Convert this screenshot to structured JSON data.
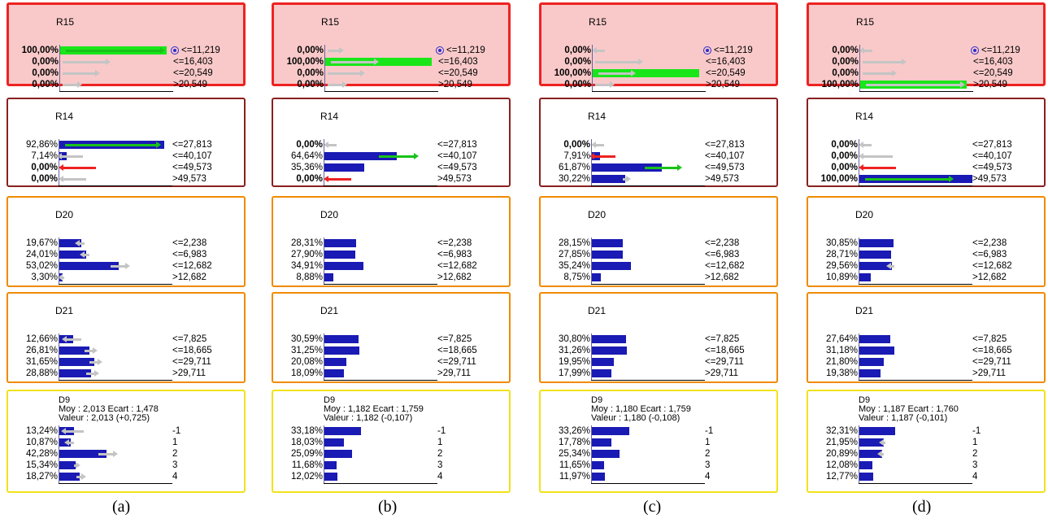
{
  "columns": [
    {
      "caption": "(a)",
      "nodes": [
        {
          "type": "evidence",
          "title": "R15",
          "rows": [
            {
              "pct": "100,00%",
              "label": "<=11,219",
              "value": 100,
              "bold": true,
              "bar": "green",
              "arrow": "right",
              "arrow_color": "green",
              "target": true
            },
            {
              "pct": "0,00%",
              "label": "<=16,403",
              "value": 0,
              "bold": true,
              "arrow": "right",
              "arrow_color": "gray",
              "arrow_len": 55
            },
            {
              "pct": "0,00%",
              "label": "<=20,549",
              "value": 0,
              "bold": true,
              "arrow": "right",
              "arrow_color": "gray",
              "arrow_len": 42
            },
            {
              "pct": "0,00%",
              "label": ">20,549",
              "value": 0,
              "bold": true,
              "arrow": "right",
              "arrow_color": "gray",
              "arrow_len": 20
            }
          ]
        },
        {
          "type": "dark",
          "title": "R14",
          "rows": [
            {
              "pct": "92,86%",
              "label": "<=27,813",
              "value": 92.86,
              "bar": "blue",
              "arrow": "right",
              "arrow_color": "green"
            },
            {
              "pct": "7,14%",
              "label": "<=40,107",
              "value": 7.14,
              "bar": "blue",
              "arrow": "left",
              "arrow_color": "gray",
              "arrow_len": 28
            },
            {
              "pct": "0,00%",
              "label": "<=49,573",
              "value": 0,
              "bold": true,
              "arrow": "left",
              "arrow_color": "red",
              "arrow_len": 42
            },
            {
              "pct": "0,00%",
              "label": ">49,573",
              "value": 0,
              "bold": true,
              "arrow": "left",
              "arrow_color": "gray",
              "arrow_len": 30
            }
          ]
        },
        {
          "type": "orange",
          "title": "D20",
          "rows": [
            {
              "pct": "19,67%",
              "label": "<=2,238",
              "value": 19.67,
              "bar": "blue",
              "arrow": "left",
              "arrow_color": "gray",
              "arrow_len": 8
            },
            {
              "pct": "24,01%",
              "label": "<=6,983",
              "value": 24.01,
              "bar": "blue",
              "arrow": "left",
              "arrow_color": "gray",
              "arrow_len": 8
            },
            {
              "pct": "53,02%",
              "label": "<=12,682",
              "value": 53.02,
              "bar": "blue",
              "arrow": "right",
              "arrow_color": "gray",
              "arrow_len": 20
            },
            {
              "pct": "3,30%",
              "label": ">12,682",
              "value": 3.3,
              "bar": "blue",
              "arrow": "left",
              "arrow_color": "gray",
              "arrow_len": 4
            }
          ]
        },
        {
          "type": "orange",
          "title": "D21",
          "rows": [
            {
              "pct": "12,66%",
              "label": "<=7,825",
              "value": 12.66,
              "bar": "blue",
              "arrow": "left",
              "arrow_color": "gray",
              "arrow_len": 20
            },
            {
              "pct": "26,81%",
              "label": "<=18,665",
              "value": 26.81,
              "bar": "blue",
              "arrow": "right",
              "arrow_color": "gray",
              "arrow_len": 12
            },
            {
              "pct": "31,65%",
              "label": "<=29,711",
              "value": 31.65,
              "bar": "blue",
              "arrow": "right",
              "arrow_color": "gray",
              "arrow_len": 12
            },
            {
              "pct": "28,88%",
              "label": ">29,711",
              "value": 28.88,
              "bar": "blue",
              "arrow": "right",
              "arrow_color": "gray",
              "arrow_len": 12
            }
          ]
        },
        {
          "type": "yellow",
          "title": "D9\nMoy : 2,013 Ecart : 1,478\nValeur : 2,013 (+0,725)",
          "rows": [
            {
              "pct": "13,24%",
              "label": "-1",
              "value": 13.24,
              "bar": "blue",
              "arrow": "left",
              "arrow_color": "gray",
              "arrow_len": 24
            },
            {
              "pct": "10,87%",
              "label": "1",
              "value": 10.87,
              "bar": "blue",
              "arrow": "left",
              "arrow_color": "gray",
              "arrow_len": 8
            },
            {
              "pct": "42,28%",
              "label": "2",
              "value": 42.28,
              "bar": "blue",
              "arrow": "right",
              "arrow_color": "gray",
              "arrow_len": 20
            },
            {
              "pct": "15,34%",
              "label": "3",
              "value": 15.34,
              "bar": "blue",
              "arrow": "right",
              "arrow_color": "gray",
              "arrow_len": 4
            },
            {
              "pct": "18,27%",
              "label": "4",
              "value": 18.27,
              "bar": "blue",
              "arrow": "right",
              "arrow_color": "gray",
              "arrow_len": 8
            }
          ]
        }
      ]
    },
    {
      "caption": "(b)",
      "nodes": [
        {
          "type": "evidence",
          "title": "R15",
          "rows": [
            {
              "pct": "0,00%",
              "label": "<=11,219",
              "value": 0,
              "bold": true,
              "arrow": "right",
              "arrow_color": "gray",
              "arrow_len": 16,
              "target": true
            },
            {
              "pct": "100,00%",
              "label": "<=16,403",
              "value": 100,
              "bold": true,
              "bar": "green",
              "arrow": "right",
              "arrow_color": "gray",
              "arrow_len": 55
            },
            {
              "pct": "0,00%",
              "label": "<=20,549",
              "value": 0,
              "bold": true,
              "arrow": "right",
              "arrow_color": "gray",
              "arrow_len": 42
            },
            {
              "pct": "0,00%",
              "label": ">20,549",
              "value": 0,
              "bold": true,
              "arrow": "right",
              "arrow_color": "gray",
              "arrow_len": 20
            }
          ]
        },
        {
          "type": "dark",
          "title": "R14",
          "rows": [
            {
              "pct": "0,00%",
              "label": "<=27,813",
              "value": 0,
              "bold": true,
              "arrow": "left",
              "arrow_color": "gray",
              "arrow_len": 12
            },
            {
              "pct": "64,64%",
              "label": "<=40,107",
              "value": 64.64,
              "bar": "blue",
              "arrow": "right",
              "arrow_color": "green",
              "arrow_len": 45
            },
            {
              "pct": "35,36%",
              "label": "<=49,573",
              "value": 35.36,
              "bar": "blue"
            },
            {
              "pct": "0,00%",
              "label": ">49,573",
              "value": 0,
              "bold": true,
              "arrow": "left",
              "arrow_color": "red",
              "arrow_len": 30
            }
          ]
        },
        {
          "type": "orange",
          "title": "D20",
          "rows": [
            {
              "pct": "28,31%",
              "label": "<=2,238",
              "value": 28.31,
              "bar": "blue"
            },
            {
              "pct": "27,90%",
              "label": "<=6,983",
              "value": 27.9,
              "bar": "blue"
            },
            {
              "pct": "34,91%",
              "label": "<=12,682",
              "value": 34.91,
              "bar": "blue"
            },
            {
              "pct": "8,88%",
              "label": ">12,682",
              "value": 8.88,
              "bar": "blue"
            }
          ]
        },
        {
          "type": "orange",
          "title": "D21",
          "rows": [
            {
              "pct": "30,59%",
              "label": "<=7,825",
              "value": 30.59,
              "bar": "blue"
            },
            {
              "pct": "31,25%",
              "label": "<=18,665",
              "value": 31.25,
              "bar": "blue"
            },
            {
              "pct": "20,08%",
              "label": "<=29,711",
              "value": 20.08,
              "bar": "blue"
            },
            {
              "pct": "18,09%",
              "label": ">29,711",
              "value": 18.09,
              "bar": "blue"
            }
          ]
        },
        {
          "type": "yellow",
          "title": "D9\nMoy : 1,182 Ecart : 1,759\nValeur : 1,182 (-0,107)",
          "rows": [
            {
              "pct": "33,18%",
              "label": "-1",
              "value": 33.18,
              "bar": "blue"
            },
            {
              "pct": "18,03%",
              "label": "1",
              "value": 18.03,
              "bar": "blue"
            },
            {
              "pct": "25,09%",
              "label": "2",
              "value": 25.09,
              "bar": "blue"
            },
            {
              "pct": "11,68%",
              "label": "3",
              "value": 11.68,
              "bar": "blue"
            },
            {
              "pct": "12,02%",
              "label": "4",
              "value": 12.02,
              "bar": "blue"
            }
          ]
        }
      ]
    },
    {
      "caption": "(c)",
      "nodes": [
        {
          "type": "evidence",
          "title": "R15",
          "rows": [
            {
              "pct": "0,00%",
              "label": "<=11,219",
              "value": 0,
              "bold": true,
              "arrow": "left",
              "arrow_color": "gray",
              "arrow_len": 12,
              "target": true
            },
            {
              "pct": "0,00%",
              "label": "<=16,403",
              "value": 0,
              "bold": true,
              "arrow": "right",
              "arrow_color": "gray",
              "arrow_len": 55
            },
            {
              "pct": "100,00%",
              "label": "<=20,549",
              "value": 100,
              "bold": true,
              "bar": "green",
              "arrow": "right",
              "arrow_color": "gray",
              "arrow_len": 42
            },
            {
              "pct": "0,00%",
              "label": ">20,549",
              "value": 0,
              "bold": true,
              "arrow": "right",
              "arrow_color": "gray",
              "arrow_len": 20
            }
          ]
        },
        {
          "type": "dark",
          "title": "R14",
          "rows": [
            {
              "pct": "0,00%",
              "label": "<=27,813",
              "value": 0,
              "bold": true,
              "arrow": "left",
              "arrow_color": "gray",
              "arrow_len": 12
            },
            {
              "pct": "7,91%",
              "label": "<=40,107",
              "value": 7.91,
              "bar": "blue",
              "arrow": "left",
              "arrow_color": "red",
              "arrow_len": 28
            },
            {
              "pct": "61,87%",
              "label": "<=49,573",
              "value": 61.87,
              "bar": "blue",
              "arrow": "right",
              "arrow_color": "green",
              "arrow_len": 42
            },
            {
              "pct": "30,22%",
              "label": ">49,573",
              "value": 30.22,
              "bar": "blue",
              "arrow": "right",
              "arrow_color": "gray",
              "arrow_len": 6
            }
          ]
        },
        {
          "type": "orange",
          "title": "D20",
          "rows": [
            {
              "pct": "28,15%",
              "label": "<=2,238",
              "value": 28.15,
              "bar": "blue"
            },
            {
              "pct": "27,85%",
              "label": "<=6,983",
              "value": 27.85,
              "bar": "blue"
            },
            {
              "pct": "35,24%",
              "label": "<=12,682",
              "value": 35.24,
              "bar": "blue"
            },
            {
              "pct": "8,75%",
              "label": ">12,682",
              "value": 8.75,
              "bar": "blue"
            }
          ]
        },
        {
          "type": "orange",
          "title": "D21",
          "rows": [
            {
              "pct": "30,80%",
              "label": "<=7,825",
              "value": 30.8,
              "bar": "blue"
            },
            {
              "pct": "31,26%",
              "label": "<=18,665",
              "value": 31.26,
              "bar": "blue"
            },
            {
              "pct": "19,95%",
              "label": "<=29,711",
              "value": 19.95,
              "bar": "blue"
            },
            {
              "pct": "17,99%",
              "label": ">29,711",
              "value": 17.99,
              "bar": "blue"
            }
          ]
        },
        {
          "type": "yellow",
          "title": "D9\nMoy : 1,180 Ecart : 1,759\nValeur : 1,180 (-0,108)",
          "rows": [
            {
              "pct": "33,26%",
              "label": "-1",
              "value": 33.26,
              "bar": "blue"
            },
            {
              "pct": "17,78%",
              "label": "1",
              "value": 17.78,
              "bar": "blue"
            },
            {
              "pct": "25,34%",
              "label": "2",
              "value": 25.34,
              "bar": "blue"
            },
            {
              "pct": "11,65%",
              "label": "3",
              "value": 11.65,
              "bar": "blue"
            },
            {
              "pct": "11,97%",
              "label": "4",
              "value": 11.97,
              "bar": "blue"
            }
          ]
        }
      ]
    },
    {
      "caption": "(d)",
      "nodes": [
        {
          "type": "evidence",
          "title": "R15",
          "rows": [
            {
              "pct": "0,00%",
              "label": "<=11,219",
              "value": 0,
              "bold": true,
              "arrow": "left",
              "arrow_color": "gray",
              "arrow_len": 12,
              "target": true
            },
            {
              "pct": "0,00%",
              "label": "<=16,403",
              "value": 0,
              "bold": true,
              "arrow": "right",
              "arrow_color": "gray",
              "arrow_len": 50
            },
            {
              "pct": "0,00%",
              "label": "<=20,549",
              "value": 0,
              "bold": true,
              "arrow": "right",
              "arrow_color": "gray",
              "arrow_len": 38
            },
            {
              "pct": "100,00%",
              "label": ">20,549",
              "value": 100,
              "bold": true,
              "bar": "green",
              "arrow": "right",
              "arrow_color": "gray"
            }
          ]
        },
        {
          "type": "dark",
          "title": "R14",
          "rows": [
            {
              "pct": "0,00%",
              "label": "<=27,813",
              "value": 0,
              "bold": true,
              "arrow": "left",
              "arrow_color": "gray",
              "arrow_len": 12
            },
            {
              "pct": "0,00%",
              "label": "<=40,107",
              "value": 0,
              "bold": true,
              "arrow": "left",
              "arrow_color": "gray",
              "arrow_len": 38
            },
            {
              "pct": "0,00%",
              "label": "<=49,573",
              "value": 0,
              "bold": true,
              "arrow": "left",
              "arrow_color": "red",
              "arrow_len": 42
            },
            {
              "pct": "100,00%",
              "label": ">49,573",
              "value": 100,
              "bold": true,
              "bar": "blue",
              "arrow": "right",
              "arrow_color": "green",
              "arrow_len": 105
            }
          ]
        },
        {
          "type": "orange",
          "title": "D20",
          "rows": [
            {
              "pct": "30,85%",
              "label": "<=2,238",
              "value": 30.85,
              "bar": "blue"
            },
            {
              "pct": "28,71%",
              "label": "<=6,983",
              "value": 28.71,
              "bar": "blue"
            },
            {
              "pct": "29,56%",
              "label": "<=12,682",
              "value": 29.56,
              "bar": "blue",
              "arrow": "left",
              "arrow_color": "gray",
              "arrow_len": 6
            },
            {
              "pct": "10,89%",
              "label": ">12,682",
              "value": 10.89,
              "bar": "blue"
            }
          ]
        },
        {
          "type": "orange",
          "title": "D21",
          "rows": [
            {
              "pct": "27,64%",
              "label": "<=7,825",
              "value": 27.64,
              "bar": "blue"
            },
            {
              "pct": "31,18%",
              "label": "<=18,665",
              "value": 31.18,
              "bar": "blue"
            },
            {
              "pct": "21,80%",
              "label": "<=29,711",
              "value": 21.8,
              "bar": "blue"
            },
            {
              "pct": "19,38%",
              "label": ">29,711",
              "value": 19.38,
              "bar": "blue"
            }
          ]
        },
        {
          "type": "yellow",
          "title": "D9\nMoy : 1,187 Ecart : 1,760\nValeur : 1,187 (-0,101)",
          "rows": [
            {
              "pct": "32,31%",
              "label": "-1",
              "value": 32.31,
              "bar": "blue"
            },
            {
              "pct": "21,95%",
              "label": "1",
              "value": 21.95,
              "bar": "blue",
              "arrow": "left",
              "arrow_color": "gray",
              "arrow_len": 4
            },
            {
              "pct": "20,89%",
              "label": "2",
              "value": 20.89,
              "bar": "blue",
              "arrow": "left",
              "arrow_color": "gray",
              "arrow_len": 4
            },
            {
              "pct": "12,08%",
              "label": "3",
              "value": 12.08,
              "bar": "blue"
            },
            {
              "pct": "12,77%",
              "label": "4",
              "value": 12.77,
              "bar": "blue"
            }
          ]
        }
      ]
    }
  ]
}
